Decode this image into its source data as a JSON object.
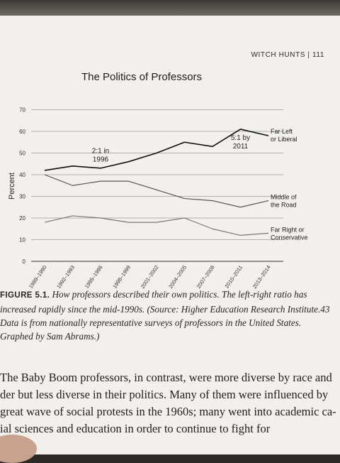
{
  "header": {
    "running_head": "WITCH HUNTS | 111"
  },
  "chart_data": {
    "type": "line",
    "title": "The Politics of Professors",
    "xlabel": "",
    "ylabel": "Percent",
    "ylim": [
      0,
      70
    ],
    "yticks": [
      0,
      10,
      20,
      30,
      40,
      50,
      60,
      70
    ],
    "grid": true,
    "categories": [
      "1989–1990",
      "1992–1993",
      "1995–1996",
      "1998–1999",
      "2001–2002",
      "2004–2005",
      "2007–2008",
      "2010–2011",
      "2013–2014"
    ],
    "series": [
      {
        "name": "Far Left or Liberal",
        "label_lines": [
          "Far Left",
          "or Liberal"
        ],
        "values": [
          42,
          44,
          43,
          46,
          50,
          55,
          53,
          61,
          58
        ],
        "color": "#111111"
      },
      {
        "name": "Middle of the Road",
        "label_lines": [
          "Middle of",
          "the Road"
        ],
        "values": [
          40,
          35,
          37,
          37,
          33,
          29,
          28,
          25,
          28
        ],
        "color": "#555555"
      },
      {
        "name": "Far Right or Conservative",
        "label_lines": [
          "Far Right or",
          "Conservative"
        ],
        "values": [
          18,
          21,
          20,
          18,
          18,
          20,
          15,
          12,
          13
        ],
        "color": "#777777"
      }
    ],
    "annotations": [
      {
        "lines": [
          "2:1 in",
          "1996"
        ],
        "x_index": 2,
        "y": 50
      },
      {
        "lines": [
          "5:1 by",
          "2011"
        ],
        "x_index": 7,
        "y": 56
      }
    ]
  },
  "caption": {
    "label": "FIGURE 5.1.",
    "text": " How professors described their own politics. The left-right ratio has increased rapidly since the mid-1990s. (Source: Higher Education Research Institute.43 Data is from nationally representative surveys of professors in the United States. Graphed by Sam Abrams.)"
  },
  "body": {
    "line1": "The Baby Boom professors, in contrast, were more diverse by race and",
    "line2": "der but less diverse in their politics. Many of them were influenced by",
    "line3": "great wave of social protests in the 1960s; many went into academic ca-",
    "line4": "ial sciences and education in order to continue to fight for"
  }
}
